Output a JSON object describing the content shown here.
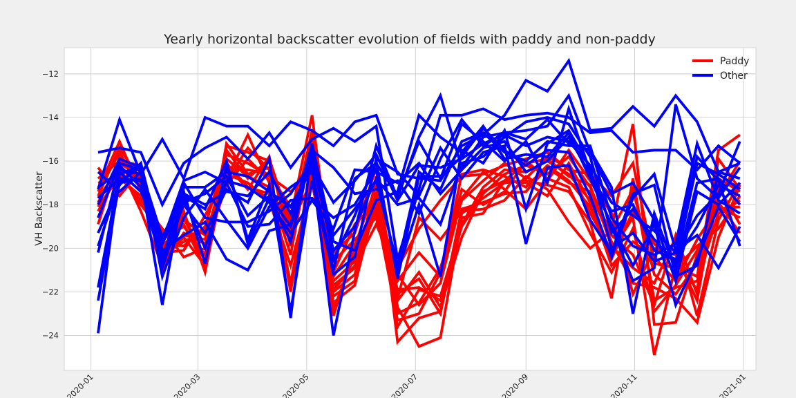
{
  "chart_data": {
    "type": "line",
    "title": "Yearly horizontal backscatter evolution of fields with paddy and non-paddy",
    "xlabel": "",
    "ylabel": "VH Backscatter",
    "x_type": "date",
    "xlim": [
      "2019-12-17",
      "2021-01-08"
    ],
    "ylim": [
      -25.6,
      -10.8
    ],
    "x_ticks": [
      "2020-01",
      "2020-03",
      "2020-05",
      "2020-07",
      "2020-09",
      "2020-11",
      "2021-01"
    ],
    "y_ticks": [
      -24,
      -22,
      -20,
      -18,
      -16,
      -14,
      -12
    ],
    "grid": true,
    "legend": {
      "position": "top-right",
      "entries": [
        {
          "name": "Paddy",
          "color": "#ff0000"
        },
        {
          "name": "Other",
          "color": "#0000ff"
        }
      ]
    },
    "dates": [
      "2020-01-05",
      "2020-01-17",
      "2020-01-29",
      "2020-02-10",
      "2020-02-22",
      "2020-03-05",
      "2020-03-17",
      "2020-03-29",
      "2020-04-10",
      "2020-04-22",
      "2020-05-04",
      "2020-05-16",
      "2020-05-28",
      "2020-06-09",
      "2020-06-21",
      "2020-07-03",
      "2020-07-15",
      "2020-07-27",
      "2020-08-08",
      "2020-08-20",
      "2020-09-01",
      "2020-09-13",
      "2020-09-25",
      "2020-10-07",
      "2020-10-19",
      "2020-10-31",
      "2020-11-12",
      "2020-11-24",
      "2020-12-06",
      "2020-12-18",
      "2020-12-30"
    ],
    "series": [
      {
        "group": "Paddy",
        "color": "#ff0000",
        "values": [
          -17.4,
          -15.6,
          -17.3,
          -20.5,
          -19.5,
          -20.8,
          -15.2,
          -16.6,
          -16.3,
          -18.6,
          -13.9,
          -21.5,
          -20.6,
          -18.4,
          -21.9,
          -21.8,
          -22.4,
          -19.0,
          -17.5,
          -16.6,
          -16.2,
          -16.6,
          -15.8,
          -17.2,
          -19.4,
          -20.3,
          -22.6,
          -19.4,
          -22.1,
          -17.6,
          -16.0
        ]
      },
      {
        "group": "Paddy",
        "color": "#ff0000",
        "values": [
          -18.3,
          -16.5,
          -18.0,
          -19.3,
          -18.7,
          -19.4,
          -16.8,
          -14.8,
          -17.0,
          -19.5,
          -15.6,
          -22.5,
          -21.7,
          -17.8,
          -23.0,
          -22.5,
          -20.9,
          -17.8,
          -16.9,
          -16.1,
          -16.8,
          -15.8,
          -16.3,
          -18.4,
          -20.1,
          -18.6,
          -24.9,
          -20.8,
          -21.3,
          -15.5,
          -14.8
        ]
      },
      {
        "group": "Paddy",
        "color": "#ff0000",
        "values": [
          -17.9,
          -16.1,
          -16.7,
          -19.8,
          -19.9,
          -19.0,
          -15.7,
          -16.1,
          -16.7,
          -17.4,
          -16.6,
          -20.2,
          -19.3,
          -16.3,
          -24.3,
          -23.2,
          -22.9,
          -18.2,
          -17.9,
          -17.5,
          -17.4,
          -16.3,
          -17.0,
          -17.4,
          -19.7,
          -21.6,
          -21.8,
          -22.3,
          -23.4,
          -19.5,
          -17.1
        ]
      },
      {
        "group": "Paddy",
        "color": "#ff0000",
        "values": [
          -16.3,
          -17.6,
          -16.4,
          -21.0,
          -18.3,
          -21.1,
          -16.2,
          -17.3,
          -15.8,
          -19.9,
          -15.4,
          -23.1,
          -19.9,
          -17.1,
          -22.7,
          -24.5,
          -24.1,
          -18.6,
          -18.4,
          -16.9,
          -17.0,
          -17.6,
          -16.1,
          -17.9,
          -20.8,
          -19.7,
          -20.4,
          -21.5,
          -19.6,
          -18.1,
          -18.6
        ]
      },
      {
        "group": "Paddy",
        "color": "#ff0000",
        "values": [
          -18.9,
          -15.8,
          -17.0,
          -20.2,
          -20.1,
          -18.5,
          -16.6,
          -17.0,
          -17.8,
          -20.8,
          -17.0,
          -21.9,
          -20.8,
          -18.9,
          -21.2,
          -22.6,
          -21.6,
          -17.7,
          -16.5,
          -17.3,
          -18.2,
          -16.9,
          -15.5,
          -16.9,
          -18.4,
          -22.1,
          -20.0,
          -20.3,
          -22.4,
          -16.8,
          -17.4
        ]
      },
      {
        "group": "Paddy",
        "color": "#ff0000",
        "values": [
          -17.0,
          -16.8,
          -17.6,
          -19.6,
          -19.0,
          -20.3,
          -15.3,
          -15.6,
          -16.0,
          -19.2,
          -14.6,
          -22.0,
          -21.2,
          -17.4,
          -23.6,
          -21.9,
          -22.2,
          -18.9,
          -17.2,
          -16.4,
          -16.5,
          -16.0,
          -16.6,
          -17.8,
          -19.1,
          -14.3,
          -23.5,
          -23.4,
          -20.3,
          -17.9,
          -19.3
        ]
      },
      {
        "group": "Paddy",
        "color": "#ff0000",
        "values": [
          -18.6,
          -16.2,
          -18.3,
          -20.8,
          -19.3,
          -19.8,
          -16.4,
          -16.4,
          -16.6,
          -18.1,
          -16.1,
          -21.1,
          -18.9,
          -17.9,
          -22.1,
          -21.4,
          -23.0,
          -18.4,
          -17.7,
          -17.0,
          -16.9,
          -17.1,
          -17.4,
          -18.8,
          -22.3,
          -16.8,
          -22.4,
          -21.8,
          -21.5,
          -18.4,
          -17.8
        ]
      },
      {
        "group": "Paddy",
        "color": "#ff0000",
        "values": [
          -17.6,
          -15.4,
          -16.9,
          -20.0,
          -18.6,
          -20.6,
          -15.9,
          -16.7,
          -17.2,
          -20.3,
          -15.1,
          -22.8,
          -20.3,
          -18.1,
          -20.9,
          -19.1,
          -17.8,
          -16.7,
          -16.6,
          -16.2,
          -15.9,
          -15.6,
          -16.4,
          -16.6,
          -17.6,
          -16.1,
          -20.7,
          -20.9,
          -19.9,
          -19.1,
          -17.6
        ]
      },
      {
        "group": "Paddy",
        "color": "#ff0000",
        "values": [
          -18.1,
          -16.7,
          -17.8,
          -19.1,
          -20.4,
          -20.0,
          -17.1,
          -15.9,
          -16.9,
          -21.6,
          -16.4,
          -20.6,
          -19.6,
          -18.6,
          -22.3,
          -18.6,
          -19.6,
          -18.3,
          -18.2,
          -17.8,
          -16.7,
          -17.3,
          -18.8,
          -20.0,
          -19.2,
          -17.3,
          -21.2,
          -22.1,
          -20.7,
          -17.2,
          -18.9
        ]
      },
      {
        "group": "Paddy",
        "color": "#ff0000",
        "values": [
          -16.8,
          -16.0,
          -16.2,
          -20.3,
          -19.7,
          -19.2,
          -16.9,
          -15.4,
          -16.4,
          -22.0,
          -15.8,
          -21.7,
          -20.9,
          -17.6,
          -21.5,
          -20.2,
          -21.3,
          -16.6,
          -16.4,
          -16.7,
          -17.2,
          -16.2,
          -16.9,
          -18.1,
          -20.5,
          -18.3,
          -19.8,
          -20.6,
          -21.9,
          -15.9,
          -17.3
        ]
      },
      {
        "group": "Paddy",
        "color": "#ff0000",
        "values": [
          -17.3,
          -15.1,
          -17.4,
          -19.9,
          -18.9,
          -20.9,
          -15.5,
          -16.8,
          -15.9,
          -18.9,
          -16.9,
          -22.2,
          -21.5,
          -16.7,
          -22.4,
          -21.1,
          -22.7,
          -19.5,
          -17.4,
          -16.9,
          -16.1,
          -15.9,
          -16.7,
          -17.1,
          -19.9,
          -20.9,
          -21.6,
          -19.5,
          -23.1,
          -18.7,
          -17.0
        ]
      },
      {
        "group": "Paddy",
        "color": "#ff0000",
        "values": [
          -17.7,
          -16.3,
          -17.1,
          -20.6,
          -19.4,
          -19.6,
          -16.1,
          -17.2,
          -17.5,
          -19.7,
          -15.3,
          -21.3,
          -19.8,
          -18.3,
          -23.3,
          -23.0,
          -21.1,
          -17.3,
          -18.0,
          -17.4,
          -16.0,
          -16.8,
          -17.2,
          -19.3,
          -21.1,
          -19.1,
          -22.9,
          -21.7,
          -20.1,
          -18.2,
          -18.1
        ]
      },
      {
        "group": "Other",
        "color": "#0000ff",
        "values": [
          -15.6,
          -15.4,
          -15.6,
          -18.0,
          -16.1,
          -15.4,
          -14.9,
          -15.9,
          -14.7,
          -16.3,
          -15.0,
          -14.5,
          -15.1,
          -14.4,
          -20.5,
          -17.3,
          -13.9,
          -13.9,
          -13.6,
          -14.1,
          -13.9,
          -13.8,
          -14.0,
          -14.7,
          -14.6,
          -15.6,
          -15.5,
          -15.5,
          -16.4,
          -15.3,
          -16.1
        ]
      },
      {
        "group": "Other",
        "color": "#0000ff",
        "values": [
          -17.3,
          -14.1,
          -16.6,
          -15.0,
          -16.8,
          -14.0,
          -14.4,
          -14.4,
          -15.3,
          -14.2,
          -14.6,
          -15.3,
          -14.2,
          -13.9,
          -16.6,
          -16.8,
          -16.9,
          -15.3,
          -14.8,
          -13.9,
          -12.3,
          -12.8,
          -11.4,
          -14.6,
          -14.5,
          -13.5,
          -14.4,
          -13.0,
          -14.2,
          -16.5,
          -16.1
        ]
      },
      {
        "group": "Other",
        "color": "#0000ff",
        "values": [
          -19.9,
          -16.9,
          -16.3,
          -21.3,
          -18.6,
          -17.3,
          -18.7,
          -20.0,
          -18.1,
          -17.2,
          -16.5,
          -21.0,
          -16.8,
          -16.1,
          -17.6,
          -15.1,
          -16.8,
          -14.3,
          -15.1,
          -16.0,
          -15.1,
          -17.0,
          -13.6,
          -16.5,
          -19.0,
          -21.5,
          -20.9,
          -13.4,
          -16.8,
          -17.7,
          -16.3
        ]
      },
      {
        "group": "Other",
        "color": "#0000ff",
        "values": [
          -23.9,
          -16.4,
          -16.6,
          -19.8,
          -17.7,
          -20.0,
          -16.9,
          -17.2,
          -17.9,
          -19.3,
          -17.8,
          -19.1,
          -16.4,
          -16.5,
          -17.0,
          -16.1,
          -17.5,
          -16.4,
          -15.4,
          -15.1,
          -16.5,
          -16.0,
          -14.9,
          -16.6,
          -18.3,
          -18.0,
          -20.1,
          -20.5,
          -19.0,
          -17.1,
          -17.6
        ]
      },
      {
        "group": "Other",
        "color": "#0000ff",
        "values": [
          -22.4,
          -17.0,
          -16.8,
          -22.6,
          -17.2,
          -17.2,
          -16.5,
          -16.7,
          -17.4,
          -18.1,
          -16.3,
          -24.0,
          -19.2,
          -15.3,
          -17.7,
          -14.9,
          -13.0,
          -16.3,
          -14.9,
          -14.7,
          -14.6,
          -14.4,
          -13.0,
          -15.6,
          -17.5,
          -17.0,
          -18.7,
          -21.5,
          -17.4,
          -18.0,
          -17.0
        ]
      },
      {
        "group": "Other",
        "color": "#0000ff",
        "values": [
          -21.8,
          -16.6,
          -16.2,
          -20.4,
          -18.0,
          -19.3,
          -17.3,
          -17.9,
          -15.9,
          -23.2,
          -15.4,
          -20.5,
          -18.5,
          -16.0,
          -21.4,
          -16.7,
          -16.7,
          -15.8,
          -14.5,
          -15.5,
          -16.2,
          -15.5,
          -15.6,
          -17.6,
          -20.4,
          -17.7,
          -16.6,
          -20.1,
          -19.4,
          -20.9,
          -19.0
        ]
      },
      {
        "group": "Other",
        "color": "#0000ff",
        "values": [
          -20.2,
          -16.2,
          -17.2,
          -20.8,
          -17.6,
          -18.2,
          -16.0,
          -19.8,
          -17.7,
          -19.7,
          -15.5,
          -16.3,
          -17.5,
          -17.3,
          -16.9,
          -18.4,
          -15.9,
          -14.1,
          -15.3,
          -14.7,
          -15.0,
          -14.1,
          -15.2,
          -15.5,
          -17.2,
          -23.0,
          -18.4,
          -21.0,
          -17.0,
          -16.8,
          -18.0
        ]
      },
      {
        "group": "Other",
        "color": "#0000ff",
        "values": [
          -19.3,
          -17.1,
          -16.1,
          -20.1,
          -19.4,
          -18.8,
          -20.5,
          -21.0,
          -19.2,
          -18.9,
          -15.2,
          -19.7,
          -20.1,
          -17.8,
          -17.4,
          -13.9,
          -14.9,
          -15.6,
          -14.4,
          -15.9,
          -15.7,
          -15.8,
          -14.7,
          -16.8,
          -18.9,
          -20.8,
          -18.9,
          -22.6,
          -20.5,
          -18.1,
          -19.7
        ]
      },
      {
        "group": "Other",
        "color": "#0000ff",
        "values": [
          -17.7,
          -16.8,
          -16.9,
          -19.7,
          -16.9,
          -16.5,
          -17.0,
          -19.0,
          -18.9,
          -17.8,
          -17.7,
          -18.6,
          -18.0,
          -16.4,
          -21.1,
          -18.0,
          -21.3,
          -15.5,
          -16.1,
          -14.6,
          -18.2,
          -15.2,
          -14.6,
          -16.3,
          -20.0,
          -19.3,
          -20.6,
          -20.2,
          -15.8,
          -16.9,
          -19.9
        ]
      },
      {
        "group": "Other",
        "color": "#0000ff",
        "values": [
          -16.5,
          -17.4,
          -16.5,
          -20.6,
          -17.0,
          -18.6,
          -18.8,
          -18.8,
          -18.3,
          -17.5,
          -16.0,
          -20.1,
          -19.0,
          -16.8,
          -18.0,
          -17.7,
          -18.9,
          -16.1,
          -15.8,
          -14.9,
          -14.2,
          -14.0,
          -14.3,
          -15.8,
          -19.3,
          -18.2,
          -19.6,
          -20.7,
          -16.1,
          -16.6,
          -17.3
        ]
      },
      {
        "group": "Other",
        "color": "#0000ff",
        "values": [
          -18.6,
          -16.1,
          -16.4,
          -19.5,
          -17.4,
          -20.7,
          -16.2,
          -19.6,
          -17.1,
          -22.9,
          -16.9,
          -21.2,
          -20.4,
          -15.9,
          -16.5,
          -17.6,
          -15.4,
          -16.8,
          -15.6,
          -15.3,
          -19.8,
          -16.3,
          -16.2,
          -18.7,
          -20.2,
          -17.5,
          -17.1,
          -21.3,
          -20.8,
          -16.5,
          -16.8
        ]
      },
      {
        "group": "Other",
        "color": "#0000ff",
        "values": [
          -17.2,
          -16.5,
          -17.4,
          -19.6,
          -17.5,
          -18.0,
          -17.4,
          -17.6,
          -16.5,
          -18.4,
          -16.2,
          -17.9,
          -16.9,
          -15.7,
          -17.8,
          -16.2,
          -16.3,
          -15.9,
          -15.2,
          -14.8,
          -15.3,
          -14.9,
          -15.1,
          -16.2,
          -17.9,
          -18.5,
          -19.2,
          -20.2,
          -18.5,
          -17.5,
          -15.1
        ]
      },
      {
        "group": "Other",
        "color": "#0000ff",
        "values": [
          -18.0,
          -15.9,
          -16.3,
          -20.9,
          -17.9,
          -17.5,
          -16.7,
          -18.5,
          -17.6,
          -19.0,
          -15.8,
          -19.4,
          -18.2,
          -16.9,
          -20.8,
          -16.5,
          -17.3,
          -15.1,
          -14.7,
          -15.6,
          -16.0,
          -15.1,
          -15.3,
          -15.3,
          -18.6,
          -19.9,
          -20.3,
          -19.8,
          -15.2,
          -17.8,
          -18.4
        ]
      }
    ]
  }
}
